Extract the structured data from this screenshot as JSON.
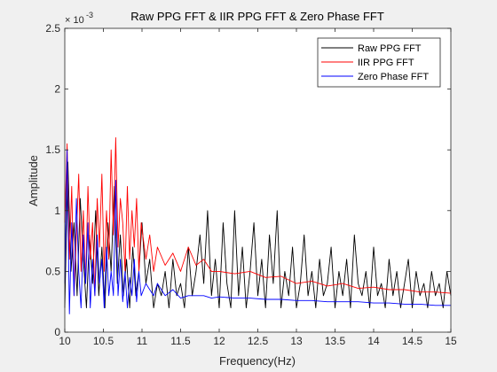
{
  "chart_data": {
    "type": "line",
    "title": "Raw PPG FFT & IIR PPG FFT & Zero Phase FFT",
    "xlabel": "Frequency(Hz)",
    "ylabel": "Amplitude",
    "exponent_base": "× 10",
    "exponent_power": "-3",
    "xlim": [
      10,
      15
    ],
    "ylim": [
      0,
      2.5
    ],
    "xticks": [
      "10",
      "10.5",
      "11",
      "11.5",
      "12",
      "12.5",
      "13",
      "13.5",
      "14",
      "14.5",
      "15"
    ],
    "yticks": [
      "0",
      "0.5",
      "1",
      "1.5",
      "2",
      "2.5"
    ],
    "grid": false,
    "legend_position": "top-right",
    "series": [
      {
        "name": "Raw PPG FFT",
        "color": "#000000",
        "x": [
          10.0,
          10.04,
          10.08,
          10.12,
          10.16,
          10.2,
          10.24,
          10.28,
          10.32,
          10.36,
          10.4,
          10.44,
          10.48,
          10.52,
          10.56,
          10.6,
          10.64,
          10.68,
          10.72,
          10.76,
          10.8,
          10.84,
          10.88,
          10.92,
          10.96,
          11.0,
          11.05,
          11.1,
          11.15,
          11.2,
          11.25,
          11.3,
          11.35,
          11.4,
          11.45,
          11.5,
          11.55,
          11.6,
          11.65,
          11.7,
          11.75,
          11.8,
          11.85,
          11.9,
          11.95,
          12.0,
          12.05,
          12.1,
          12.15,
          12.2,
          12.25,
          12.3,
          12.35,
          12.4,
          12.45,
          12.5,
          12.55,
          12.6,
          12.65,
          12.7,
          12.75,
          12.8,
          12.85,
          12.9,
          12.95,
          13.0,
          13.05,
          13.1,
          13.15,
          13.2,
          13.25,
          13.3,
          13.35,
          13.4,
          13.45,
          13.5,
          13.55,
          13.6,
          13.65,
          13.7,
          13.75,
          13.8,
          13.85,
          13.9,
          13.95,
          14.0,
          14.05,
          14.1,
          14.15,
          14.2,
          14.25,
          14.3,
          14.35,
          14.4,
          14.45,
          14.5,
          14.55,
          14.6,
          14.65,
          14.7,
          14.75,
          14.8,
          14.85,
          14.9,
          14.95,
          15.0
        ],
        "values": [
          0.2,
          1.4,
          0.5,
          0.9,
          0.3,
          1.1,
          0.6,
          0.2,
          0.8,
          0.4,
          1.0,
          0.3,
          0.7,
          0.2,
          0.9,
          0.5,
          1.2,
          0.4,
          0.8,
          0.3,
          0.6,
          0.2,
          0.7,
          0.3,
          0.5,
          0.9,
          0.4,
          0.6,
          0.2,
          0.4,
          0.3,
          0.5,
          0.2,
          0.6,
          0.3,
          0.4,
          0.2,
          0.7,
          0.3,
          0.5,
          0.8,
          0.4,
          1.0,
          0.3,
          0.6,
          0.2,
          0.9,
          0.4,
          0.2,
          1.0,
          0.3,
          0.7,
          0.2,
          0.5,
          0.9,
          0.3,
          0.6,
          0.2,
          0.8,
          0.4,
          1.0,
          0.2,
          0.5,
          0.3,
          0.7,
          0.2,
          0.4,
          0.8,
          0.3,
          0.5,
          0.2,
          0.6,
          0.3,
          0.4,
          0.7,
          0.2,
          0.5,
          0.3,
          0.6,
          0.2,
          0.8,
          0.4,
          0.3,
          0.5,
          0.2,
          0.7,
          0.3,
          0.4,
          0.2,
          0.6,
          0.3,
          0.5,
          0.2,
          0.4,
          0.6,
          0.2,
          0.5,
          0.3,
          0.4,
          0.2,
          0.5,
          0.3,
          0.4,
          0.2,
          0.5,
          0.3
        ]
      },
      {
        "name": "IIR PPG FFT",
        "color": "#ff0000",
        "x": [
          10.0,
          10.03,
          10.06,
          10.09,
          10.12,
          10.15,
          10.18,
          10.21,
          10.24,
          10.27,
          10.3,
          10.33,
          10.36,
          10.39,
          10.42,
          10.45,
          10.48,
          10.51,
          10.54,
          10.57,
          10.6,
          10.63,
          10.66,
          10.69,
          10.72,
          10.75,
          10.78,
          10.81,
          10.84,
          10.87,
          10.9,
          10.93,
          10.96,
          10.99,
          11.05,
          11.1,
          11.15,
          11.2,
          11.3,
          11.4,
          11.5,
          11.6,
          11.7,
          11.8,
          11.9,
          12.0,
          12.2,
          12.4,
          12.6,
          12.8,
          13.0,
          13.2,
          13.4,
          13.6,
          13.8,
          14.0,
          14.2,
          14.4,
          14.6,
          14.8,
          15.0
        ],
        "values": [
          0.9,
          1.55,
          0.6,
          1.2,
          0.3,
          0.8,
          1.3,
          0.5,
          1.0,
          0.4,
          1.2,
          0.6,
          0.9,
          0.3,
          1.1,
          0.7,
          1.3,
          0.5,
          1.0,
          0.6,
          1.5,
          0.8,
          1.6,
          0.7,
          1.1,
          0.9,
          0.5,
          1.2,
          0.6,
          1.0,
          0.7,
          1.1,
          0.5,
          0.9,
          0.6,
          0.8,
          0.5,
          0.7,
          0.55,
          0.65,
          0.5,
          0.7,
          0.55,
          0.6,
          0.5,
          0.5,
          0.48,
          0.5,
          0.45,
          0.46,
          0.4,
          0.42,
          0.38,
          0.4,
          0.36,
          0.37,
          0.35,
          0.35,
          0.33,
          0.33,
          0.32
        ]
      },
      {
        "name": "Zero Phase FFT",
        "color": "#0000ff",
        "x": [
          10.0,
          10.03,
          10.06,
          10.09,
          10.12,
          10.15,
          10.18,
          10.21,
          10.24,
          10.27,
          10.3,
          10.33,
          10.36,
          10.39,
          10.42,
          10.45,
          10.48,
          10.51,
          10.54,
          10.57,
          10.6,
          10.63,
          10.66,
          10.69,
          10.72,
          10.75,
          10.78,
          10.81,
          10.84,
          10.87,
          10.9,
          10.93,
          10.96,
          10.99,
          11.05,
          11.1,
          11.15,
          11.2,
          11.3,
          11.4,
          11.5,
          11.6,
          11.7,
          11.8,
          11.9,
          12.0,
          12.2,
          12.4,
          12.6,
          12.8,
          13.0,
          13.2,
          13.4,
          13.6,
          13.8,
          14.0,
          14.2,
          14.4,
          14.6,
          14.8,
          15.0
        ],
        "values": [
          0.4,
          1.5,
          0.15,
          0.9,
          0.3,
          1.1,
          0.5,
          0.2,
          0.8,
          0.4,
          0.9,
          0.2,
          0.6,
          0.3,
          0.8,
          0.4,
          0.6,
          0.2,
          0.7,
          0.3,
          0.5,
          0.3,
          1.25,
          0.3,
          0.6,
          0.25,
          0.5,
          0.2,
          0.45,
          0.3,
          0.6,
          0.25,
          0.5,
          0.3,
          0.4,
          0.35,
          0.3,
          0.4,
          0.3,
          0.35,
          0.28,
          0.3,
          0.3,
          0.3,
          0.28,
          0.29,
          0.28,
          0.28,
          0.27,
          0.27,
          0.26,
          0.26,
          0.25,
          0.25,
          0.25,
          0.24,
          0.24,
          0.23,
          0.23,
          0.22,
          0.22
        ]
      }
    ]
  }
}
